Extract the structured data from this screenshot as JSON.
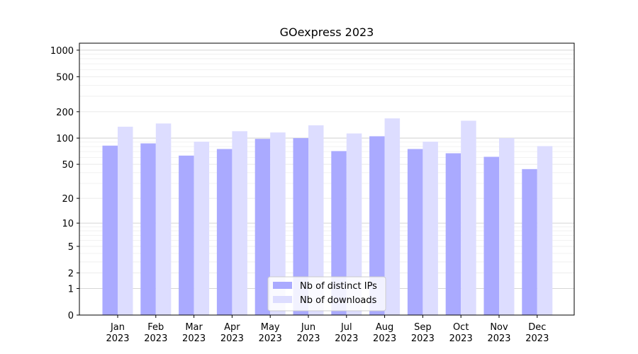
{
  "chart_data": {
    "type": "bar",
    "title": "GOexpress 2023",
    "xlabel": "",
    "ylabel": "",
    "yscale": "log(1+y)",
    "ylim": [
      0,
      1200
    ],
    "yticks": [
      0,
      1,
      2,
      5,
      10,
      20,
      50,
      100,
      200,
      500,
      1000
    ],
    "grid": "y",
    "legend_position": "bottom-center",
    "categories": [
      [
        "Jan",
        "2023"
      ],
      [
        "Feb",
        "2023"
      ],
      [
        "Mar",
        "2023"
      ],
      [
        "Apr",
        "2023"
      ],
      [
        "May",
        "2023"
      ],
      [
        "Jun",
        "2023"
      ],
      [
        "Jul",
        "2023"
      ],
      [
        "Aug",
        "2023"
      ],
      [
        "Sep",
        "2023"
      ],
      [
        "Oct",
        "2023"
      ],
      [
        "Nov",
        "2023"
      ],
      [
        "Dec",
        "2023"
      ]
    ],
    "series": [
      {
        "name": "Nb of distinct IPs",
        "color": "#aaaaff",
        "values": [
          82,
          87,
          63,
          75,
          98,
          100,
          71,
          105,
          75,
          67,
          61,
          44
        ]
      },
      {
        "name": "Nb of downloads",
        "color": "#ddddff",
        "values": [
          135,
          147,
          91,
          120,
          116,
          140,
          113,
          168,
          91,
          158,
          100,
          81
        ]
      }
    ]
  }
}
